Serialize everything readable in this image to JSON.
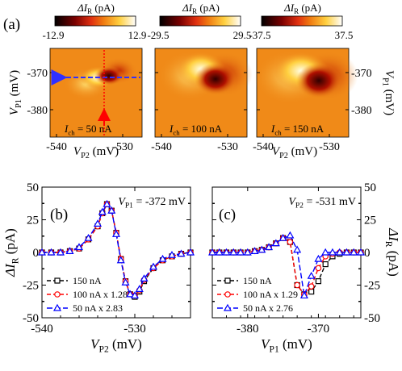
{
  "panel_labels": {
    "a": "(a)",
    "b": "(b)",
    "c": "(c)"
  },
  "colorbars": [
    {
      "label_sym": "ΔI",
      "label_sub": "R",
      "label_unit": "(pA)",
      "min": "-12.9",
      "max": "12.9"
    },
    {
      "label_sym": "ΔI",
      "label_sub": "R",
      "label_unit": "(pA)",
      "min": "-29.5",
      "max": "29.5"
    },
    {
      "label_sym": "ΔI",
      "label_sub": "R",
      "label_unit": "(pA)",
      "min": "-37.5",
      "max": "37.5"
    }
  ],
  "heatmaps": [
    {
      "current_sym": "I",
      "current_sub": "ch",
      "current_text": "= 50 nA"
    },
    {
      "current_sym": "I",
      "current_sub": "ch",
      "current_text": "= 100 nA"
    },
    {
      "current_sym": "I",
      "current_sub": "ch",
      "current_text": "= 150 nA"
    }
  ],
  "heatmap_axes": {
    "x_ticks": [
      "-540",
      "-530"
    ],
    "y_ticks": [
      "-370",
      "-380"
    ],
    "xlabel_sym": "V",
    "xlabel_sub": "P2",
    "xlabel_unit": "(mV)",
    "ylabel_sym": "V",
    "ylabel_sub": "P1",
    "ylabel_unit": "(mV)"
  },
  "panel_b": {
    "annotation_sym": "V",
    "annotation_sub": "P1",
    "annotation_text": "= -372 mV",
    "ylabel_sym": "ΔI",
    "ylabel_sub": "R",
    "ylabel_unit": "(pA)",
    "xlabel_sym": "V",
    "xlabel_sub": "P2",
    "xlabel_unit": "(mV)",
    "x_ticks": [
      "-540",
      "-530"
    ],
    "y_ticks": [
      "50",
      "25",
      "0",
      "-25",
      "-50"
    ]
  },
  "panel_c": {
    "annotation_sym": "V",
    "annotation_sub": "P2",
    "annotation_text": "= -531 mV",
    "ylabel_sym": "ΔI",
    "ylabel_sub": "R",
    "ylabel_unit": "(pA)",
    "xlabel_sym": "V",
    "xlabel_sub": "P1",
    "xlabel_unit": "(mV)",
    "x_ticks": [
      "-380",
      "-370"
    ],
    "y_ticks": [
      "50",
      "25",
      "0",
      "-25",
      "-50"
    ]
  },
  "colors": {
    "series_black": "#000000",
    "series_red": "#ff0000",
    "series_blue": "#0000ff",
    "heatmap_background": "#f08a18"
  },
  "chart_data": [
    {
      "type": "heatmap",
      "panel": "a",
      "x_range": [
        -541,
        -524
      ],
      "y_range": [
        -386,
        -363
      ],
      "colorbar_range": [
        -12.9,
        12.9
      ]
    },
    {
      "type": "line",
      "panel": "b",
      "xlim": [
        -540,
        -524
      ],
      "ylim": [
        -50,
        50
      ],
      "legend_position": "bottom-left",
      "x": [
        -540,
        -539,
        -538,
        -537,
        -536,
        -535,
        -534,
        -533.5,
        -533,
        -532.5,
        -532,
        -531.5,
        -531,
        -530.5,
        -530,
        -529.5,
        -529,
        -528,
        -527,
        -526,
        -525,
        -524
      ],
      "series": [
        {
          "name": "150 nA",
          "marker": "square",
          "values": [
            0,
            0,
            0,
            1,
            3,
            10,
            20,
            30,
            37,
            32,
            15,
            -5,
            -22,
            -32,
            -34,
            -30,
            -22,
            -12,
            -6,
            -3,
            -1,
            0
          ]
        },
        {
          "name": "100 nA x 1.28",
          "marker": "circle",
          "values": [
            0,
            0,
            0,
            1,
            3,
            10,
            20,
            30,
            37,
            32,
            15,
            -5,
            -22,
            -32,
            -33,
            -29,
            -21,
            -12,
            -6,
            -3,
            -1,
            0
          ]
        },
        {
          "name": "50 nA x 2.83",
          "marker": "triangle",
          "values": [
            0,
            0,
            0,
            1,
            4,
            11,
            22,
            31,
            37,
            32,
            14,
            -6,
            -23,
            -32,
            -33,
            -28,
            -20,
            -11,
            -5,
            -2,
            -1,
            0
          ]
        }
      ]
    },
    {
      "type": "line",
      "panel": "c",
      "xlim": [
        -385,
        -364
      ],
      "ylim": [
        -50,
        50
      ],
      "legend_position": "bottom-left",
      "series": [
        {
          "name": "150 nA",
          "marker": "square",
          "x": [
            -385,
            -384,
            -383,
            -382,
            -381,
            -380,
            -379,
            -378,
            -377,
            -376,
            -375,
            -374,
            -373,
            -372,
            -371,
            -370,
            -369,
            -368,
            -367,
            -366,
            -365,
            -364
          ],
          "values": [
            0,
            0,
            0,
            0,
            0,
            0,
            1,
            2,
            4,
            7,
            11,
            8,
            -25,
            -32,
            -30,
            -22,
            -9,
            -3,
            -1,
            0,
            0,
            0
          ]
        },
        {
          "name": "100 nA x 1.29",
          "marker": "circle",
          "x": [
            -385,
            -384,
            -383,
            -382,
            -381,
            -380,
            -379,
            -378,
            -377,
            -376,
            -375,
            -374,
            -373,
            -372,
            -371,
            -370,
            -369,
            -368,
            -367,
            -366,
            -365,
            -364
          ],
          "values": [
            0,
            0,
            0,
            0,
            0,
            0,
            1,
            2,
            4,
            7,
            11,
            8,
            -25,
            -32,
            -26,
            -12,
            -3,
            -1,
            0,
            0,
            0,
            0
          ]
        },
        {
          "name": "50 nA x 2.76",
          "marker": "triangle",
          "x": [
            -385,
            -384,
            -383,
            -382,
            -381,
            -380,
            -379,
            -378,
            -377,
            -376,
            -375,
            -374,
            -373,
            -372,
            -371,
            -370,
            -369,
            -368,
            -367,
            -366,
            -365,
            -364
          ],
          "values": [
            0,
            0,
            0,
            0,
            0,
            0,
            1,
            2,
            4,
            7,
            11,
            13,
            2,
            -33,
            -18,
            -5,
            0,
            0,
            0,
            0,
            0,
            0
          ]
        }
      ]
    }
  ]
}
